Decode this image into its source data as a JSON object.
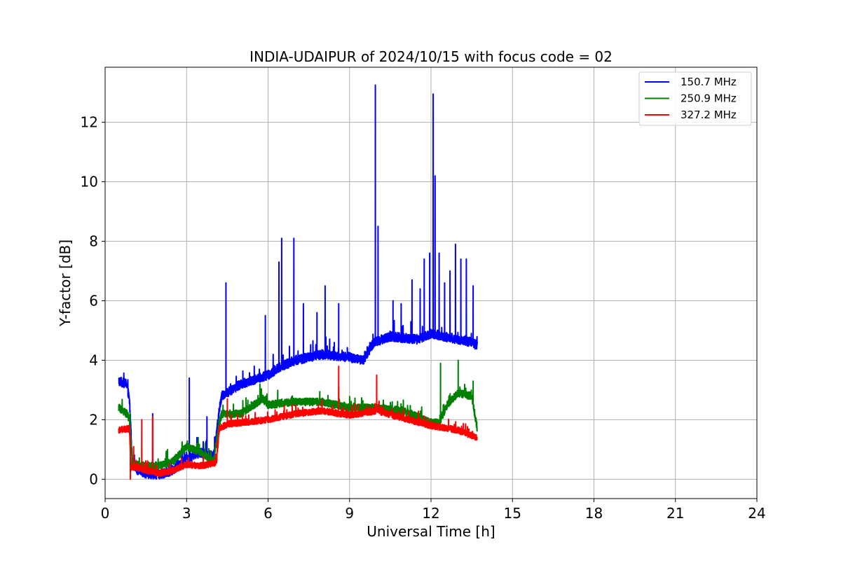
{
  "chart_data": {
    "type": "line",
    "title": "INDIA-UDAIPUR of 2024/10/15 with focus code = 02",
    "xlabel": "Universal Time [h]",
    "ylabel": "Y-factor [dB]",
    "xlim": [
      0,
      24
    ],
    "ylim": [
      -0.65,
      13.85
    ],
    "xticks": [
      0,
      3,
      6,
      9,
      12,
      15,
      18,
      21,
      24
    ],
    "yticks": [
      0,
      2,
      4,
      6,
      8,
      10,
      12
    ],
    "grid": true,
    "legend_position": "top-right",
    "series": [
      {
        "name": "150.7 MHz",
        "color": "#0000ff",
        "baseline": [
          [
            0.5,
            3.3
          ],
          [
            0.8,
            3.2
          ],
          [
            0.9,
            2.6
          ],
          [
            1.0,
            0.6
          ],
          [
            1.2,
            0.3
          ],
          [
            1.5,
            0.2
          ],
          [
            2.0,
            0.15
          ],
          [
            2.5,
            0.3
          ],
          [
            3.0,
            0.7
          ],
          [
            3.5,
            0.9
          ],
          [
            4.0,
            0.8
          ],
          [
            4.2,
            2.3
          ],
          [
            4.3,
            2.8
          ],
          [
            5.0,
            3.2
          ],
          [
            6.0,
            3.5
          ],
          [
            6.5,
            3.8
          ],
          [
            7.0,
            4.0
          ],
          [
            8.0,
            4.2
          ],
          [
            9.0,
            4.1
          ],
          [
            9.5,
            4.0
          ],
          [
            9.9,
            4.6
          ],
          [
            10.5,
            4.8
          ],
          [
            11.5,
            4.7
          ],
          [
            12.0,
            4.9
          ],
          [
            12.5,
            4.8
          ],
          [
            13.0,
            4.7
          ],
          [
            13.5,
            4.6
          ],
          [
            13.7,
            4.5
          ]
        ],
        "noise": 0.16,
        "spikes": [
          [
            1.75,
            2.2
          ],
          [
            3.1,
            3.4
          ],
          [
            3.75,
            2.1
          ],
          [
            4.45,
            6.6
          ],
          [
            5.9,
            5.5
          ],
          [
            6.4,
            7.3
          ],
          [
            6.5,
            8.1
          ],
          [
            6.95,
            8.1
          ],
          [
            7.3,
            5.9
          ],
          [
            7.8,
            5.6
          ],
          [
            8.1,
            6.5
          ],
          [
            8.6,
            5.9
          ],
          [
            9.95,
            13.25
          ],
          [
            10.05,
            8.5
          ],
          [
            10.6,
            6.0
          ],
          [
            10.9,
            5.9
          ],
          [
            11.3,
            6.7
          ],
          [
            11.6,
            6.4
          ],
          [
            11.75,
            7.4
          ],
          [
            11.95,
            7.6
          ],
          [
            12.08,
            12.95
          ],
          [
            12.15,
            10.2
          ],
          [
            12.3,
            7.6
          ],
          [
            12.5,
            6.6
          ],
          [
            12.7,
            7.0
          ],
          [
            12.9,
            7.9
          ],
          [
            13.1,
            7.4
          ],
          [
            13.3,
            7.4
          ],
          [
            13.55,
            6.5
          ]
        ]
      },
      {
        "name": "250.9 MHz",
        "color": "#008000",
        "baseline": [
          [
            0.5,
            2.4
          ],
          [
            0.8,
            2.2
          ],
          [
            0.9,
            2.0
          ],
          [
            1.0,
            0.5
          ],
          [
            1.5,
            0.45
          ],
          [
            2.0,
            0.45
          ],
          [
            2.5,
            0.6
          ],
          [
            3.0,
            1.1
          ],
          [
            3.5,
            0.9
          ],
          [
            4.0,
            0.6
          ],
          [
            4.2,
            1.9
          ],
          [
            4.3,
            2.2
          ],
          [
            5.0,
            2.2
          ],
          [
            5.8,
            2.7
          ],
          [
            6.0,
            2.5
          ],
          [
            7.0,
            2.6
          ],
          [
            8.0,
            2.6
          ],
          [
            9.0,
            2.4
          ],
          [
            10.0,
            2.4
          ],
          [
            11.0,
            2.3
          ],
          [
            12.0,
            1.9
          ],
          [
            12.3,
            1.9
          ],
          [
            12.6,
            2.5
          ],
          [
            13.0,
            2.9
          ],
          [
            13.5,
            2.8
          ],
          [
            13.7,
            1.7
          ]
        ],
        "noise": 0.13,
        "spikes": [
          [
            2.3,
            1.0
          ],
          [
            5.7,
            3.2
          ],
          [
            8.6,
            3.1
          ],
          [
            12.35,
            3.9
          ],
          [
            13.0,
            4.0
          ],
          [
            13.55,
            3.3
          ]
        ]
      },
      {
        "name": "327.2 MHz",
        "color": "#ff0000",
        "baseline": [
          [
            0.5,
            1.65
          ],
          [
            0.9,
            1.7
          ],
          [
            0.95,
            0.4
          ],
          [
            1.2,
            0.4
          ],
          [
            1.5,
            0.3
          ],
          [
            2.0,
            0.2
          ],
          [
            2.5,
            0.3
          ],
          [
            3.0,
            0.5
          ],
          [
            3.5,
            0.45
          ],
          [
            4.1,
            0.55
          ],
          [
            4.2,
            1.7
          ],
          [
            4.5,
            1.85
          ],
          [
            5.0,
            1.9
          ],
          [
            6.0,
            2.0
          ],
          [
            7.0,
            2.2
          ],
          [
            8.0,
            2.3
          ],
          [
            9.0,
            2.15
          ],
          [
            10.0,
            2.3
          ],
          [
            11.0,
            2.05
          ],
          [
            12.0,
            1.8
          ],
          [
            13.0,
            1.65
          ],
          [
            13.7,
            1.4
          ]
        ],
        "noise": 0.11,
        "spikes": [
          [
            0.93,
            0.0
          ],
          [
            1.05,
            1.1
          ],
          [
            1.35,
            2.0
          ],
          [
            1.75,
            2.1
          ],
          [
            4.5,
            2.7
          ],
          [
            8.6,
            3.8
          ],
          [
            10.0,
            3.5
          ]
        ]
      }
    ]
  }
}
